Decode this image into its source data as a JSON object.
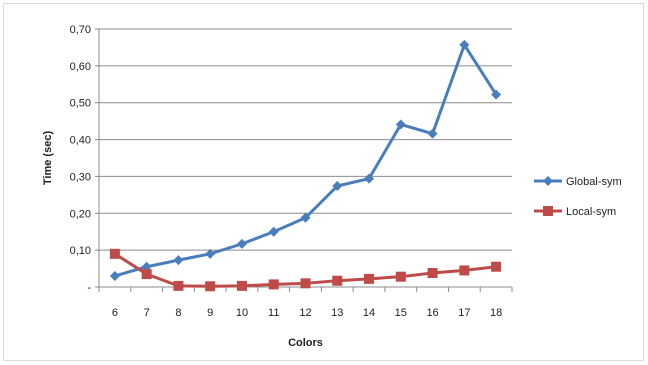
{
  "chart_data": {
    "type": "line",
    "title": "",
    "xlabel": "Colors",
    "ylabel": "Time (sec)",
    "categories": [
      "6",
      "7",
      "8",
      "9",
      "10",
      "11",
      "12",
      "13",
      "14",
      "15",
      "16",
      "17",
      "18"
    ],
    "ylim": [
      0,
      0.7
    ],
    "y_ticks": [
      0,
      0.1,
      0.2,
      0.3,
      0.4,
      0.5,
      0.6,
      0.7
    ],
    "y_tick_labels": [
      "-",
      "0,10",
      "0,20",
      "0,30",
      "0,40",
      "0,50",
      "0,60",
      "0,70"
    ],
    "grid": true,
    "legend_position": "right",
    "series": [
      {
        "name": "Global-sym",
        "color": "#4a7ebb",
        "marker": "diamond",
        "values": [
          0.03,
          0.055,
          0.073,
          0.09,
          0.117,
          0.15,
          0.188,
          0.274,
          0.294,
          0.441,
          0.416,
          0.657,
          0.522
        ]
      },
      {
        "name": "Local-sym",
        "color": "#be4b48",
        "marker": "square",
        "values": [
          0.09,
          0.035,
          0.003,
          0.002,
          0.003,
          0.007,
          0.01,
          0.017,
          0.022,
          0.028,
          0.038,
          0.045,
          0.055
        ]
      }
    ]
  }
}
